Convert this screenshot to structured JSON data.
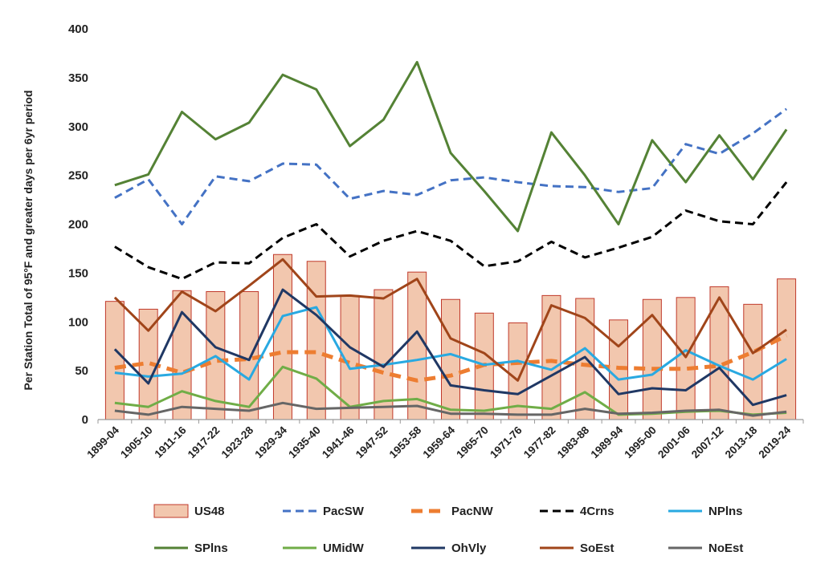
{
  "chart_data": {
    "type": "bar+line",
    "title": "",
    "xlabel": "",
    "ylabel": "Per Station Total of 95°F and greater days per 6yr period",
    "ylim": [
      0,
      400
    ],
    "yticks": [
      0,
      50,
      100,
      150,
      200,
      250,
      300,
      350,
      400
    ],
    "grid": false,
    "legend_position": "bottom",
    "categories": [
      "1899-04",
      "1905-10",
      "1911-16",
      "1917-22",
      "1923-28",
      "1929-34",
      "1935-40",
      "1941-46",
      "1947-52",
      "1953-58",
      "1959-64",
      "1965-70",
      "1971-76",
      "1977-82",
      "1983-88",
      "1989-94",
      "1995-00",
      "2001-06",
      "2007-12",
      "2013-18",
      "2019-24"
    ],
    "series": [
      {
        "name": "US48",
        "kind": "bar",
        "color": "#f2c7ae",
        "edge": "#c0392b",
        "values": [
          121,
          113,
          132,
          131,
          131,
          169,
          162,
          127,
          133,
          151,
          123,
          109,
          99,
          127,
          124,
          102,
          123,
          125,
          136,
          118,
          144
        ]
      },
      {
        "name": "PacSW",
        "kind": "line",
        "dash": "dashed",
        "color": "#4472c4",
        "values": [
          227,
          246,
          200,
          249,
          244,
          262,
          261,
          226,
          234,
          230,
          245,
          248,
          243,
          239,
          238,
          233,
          237,
          282,
          272,
          293,
          318
        ]
      },
      {
        "name": "PacNW",
        "kind": "line",
        "dash": "bold-dashed",
        "color": "#ed7d31",
        "values": [
          53,
          58,
          48,
          60,
          62,
          69,
          69,
          58,
          48,
          40,
          45,
          56,
          58,
          60,
          56,
          53,
          52,
          52,
          55,
          69,
          86
        ]
      },
      {
        "name": "4Crns",
        "kind": "line",
        "dash": "dashed",
        "color": "#000000",
        "values": [
          177,
          156,
          144,
          161,
          160,
          186,
          200,
          167,
          183,
          193,
          183,
          157,
          162,
          182,
          166,
          176,
          187,
          214,
          203,
          200,
          243
        ]
      },
      {
        "name": "NPlns",
        "kind": "line",
        "dash": "solid",
        "color": "#29a9e1",
        "values": [
          48,
          44,
          47,
          65,
          41,
          106,
          115,
          52,
          56,
          61,
          67,
          56,
          60,
          51,
          73,
          41,
          46,
          71,
          55,
          41,
          62
        ]
      },
      {
        "name": "SPlns",
        "kind": "line",
        "dash": "solid",
        "color": "#548235",
        "values": [
          240,
          251,
          315,
          287,
          304,
          353,
          338,
          280,
          307,
          366,
          273,
          234,
          193,
          294,
          250,
          200,
          286,
          243,
          291,
          246,
          297
        ]
      },
      {
        "name": "UMidW",
        "kind": "line",
        "dash": "solid",
        "color": "#70ad47",
        "values": [
          17,
          13,
          29,
          19,
          13,
          54,
          42,
          13,
          19,
          21,
          10,
          9,
          14,
          11,
          28,
          5,
          6,
          8,
          9,
          5,
          7
        ]
      },
      {
        "name": "OhVly",
        "kind": "line",
        "dash": "solid",
        "color": "#203864",
        "values": [
          72,
          37,
          110,
          74,
          61,
          133,
          107,
          74,
          54,
          90,
          35,
          30,
          26,
          45,
          64,
          26,
          32,
          30,
          53,
          15,
          25
        ]
      },
      {
        "name": "SoEst",
        "kind": "line",
        "dash": "solid",
        "color": "#a0451a",
        "values": [
          125,
          91,
          131,
          111,
          137,
          164,
          126,
          127,
          124,
          144,
          83,
          68,
          40,
          117,
          104,
          75,
          107,
          64,
          125,
          68,
          92
        ]
      },
      {
        "name": "NoEst",
        "kind": "line",
        "dash": "solid",
        "color": "#666666",
        "values": [
          9,
          5,
          13,
          11,
          9,
          17,
          11,
          12,
          13,
          14,
          6,
          6,
          5,
          5,
          11,
          6,
          7,
          9,
          10,
          4,
          8
        ]
      }
    ]
  }
}
